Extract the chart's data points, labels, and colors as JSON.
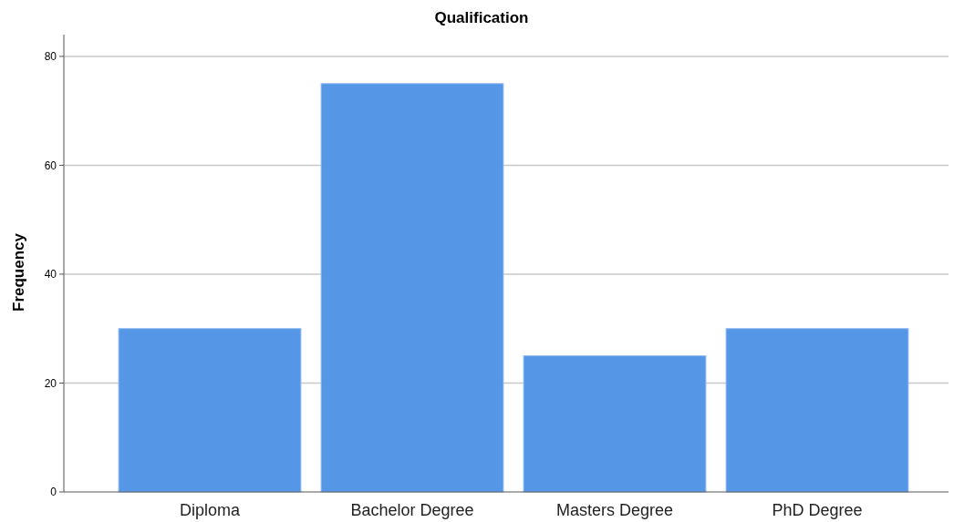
{
  "chart_data": {
    "type": "bar",
    "title": "Qualification",
    "ylabel": "Frequency",
    "categories": [
      "Diploma",
      "Bachelor Degree",
      "Masters Degree",
      "PhD Degree"
    ],
    "values": [
      30,
      75,
      25,
      30
    ],
    "color": "#5596e6",
    "ylim": [
      0,
      84
    ],
    "yticks": [
      0,
      20,
      40,
      60,
      80
    ],
    "grid": "y"
  }
}
